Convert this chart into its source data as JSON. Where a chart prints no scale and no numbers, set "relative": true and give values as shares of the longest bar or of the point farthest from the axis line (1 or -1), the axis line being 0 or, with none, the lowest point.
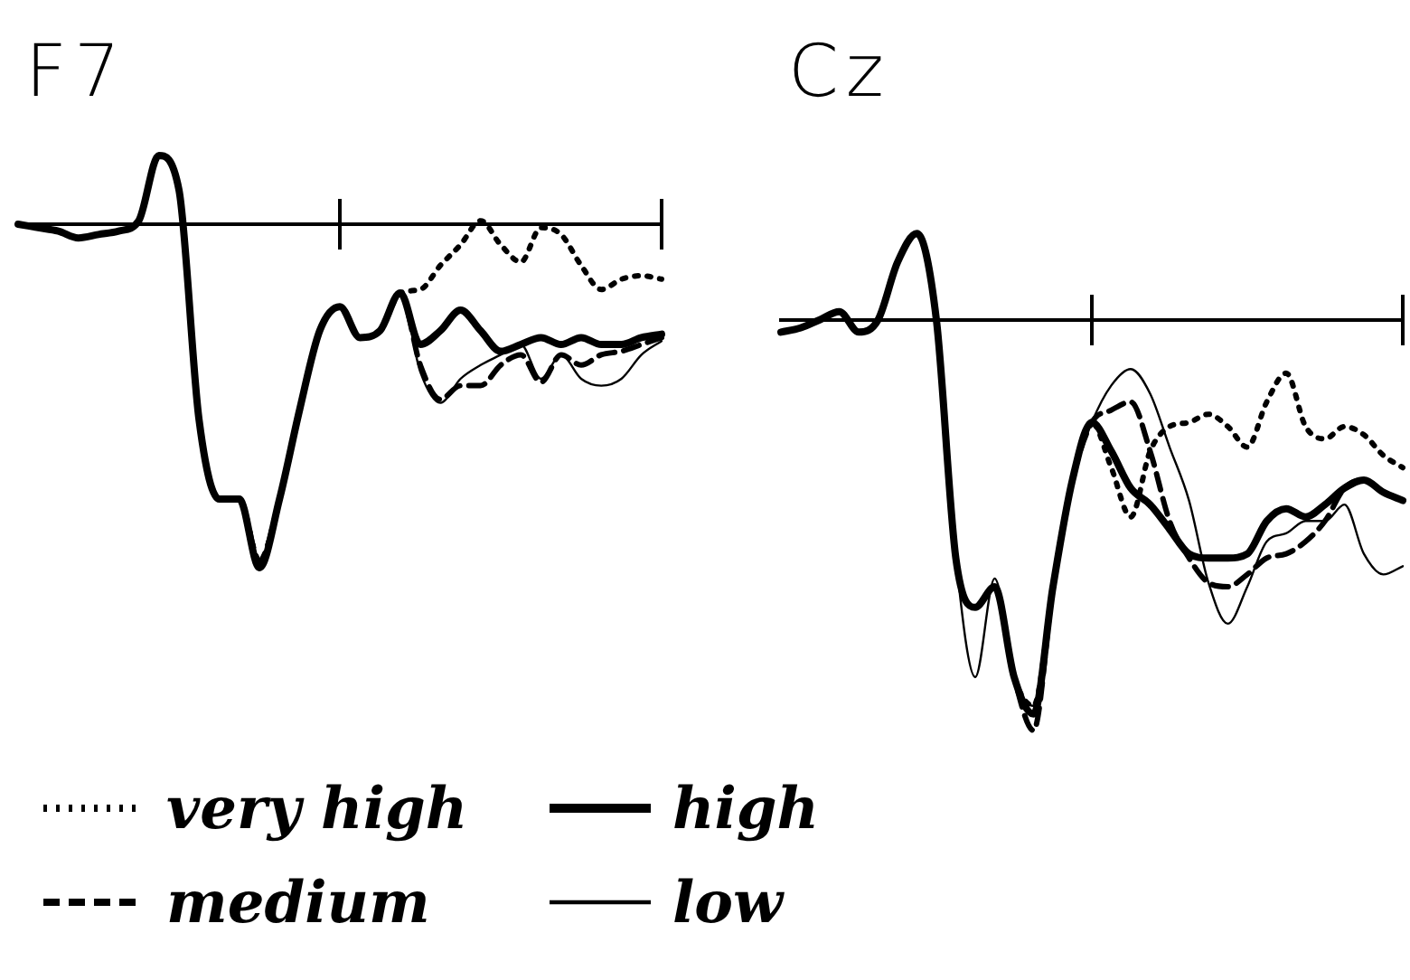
{
  "chart_data": [
    {
      "type": "line",
      "title": "F7",
      "relative": true,
      "legend": "bottom",
      "categories": [
        null,
        null,
        null,
        null,
        null,
        null,
        null,
        null,
        null,
        null,
        null,
        null,
        null,
        null,
        null,
        null,
        null,
        null,
        null,
        null,
        null,
        null,
        null,
        null,
        null,
        null,
        null,
        null,
        null,
        null,
        null,
        null,
        null
      ],
      "series": [
        {
          "name": "very high",
          "color": "#000000",
          "line_style": "dotted",
          "values": [
            0,
            -0.01,
            -0.02,
            -0.04,
            -0.03,
            -0.02,
            0.01,
            0.2,
            0.1,
            -0.57,
            -0.8,
            -0.8,
            -0.98,
            -0.8,
            -0.54,
            -0.31,
            -0.24,
            -0.33,
            -0.31,
            -0.2,
            -0.19,
            -0.12,
            -0.06,
            0.01,
            -0.06,
            -0.11,
            -0.01,
            -0.03,
            -0.12,
            -0.19,
            -0.16,
            -0.15,
            -0.16
          ]
        },
        {
          "name": "high",
          "color": "#000000",
          "line_style": "solid",
          "values": [
            0,
            -0.01,
            -0.02,
            -0.04,
            -0.03,
            -0.02,
            0.01,
            0.2,
            0.1,
            -0.57,
            -0.8,
            -0.8,
            -1,
            -0.8,
            -0.54,
            -0.31,
            -0.24,
            -0.33,
            -0.31,
            -0.2,
            -0.35,
            -0.31,
            -0.25,
            -0.31,
            -0.37,
            -0.35,
            -0.33,
            -0.35,
            -0.33,
            -0.35,
            -0.35,
            -0.33,
            -0.32
          ]
        },
        {
          "name": "medium",
          "color": "#000000",
          "line_style": "dashed",
          "values": [
            0,
            -0.01,
            -0.02,
            -0.04,
            -0.03,
            -0.02,
            0.01,
            0.2,
            0.1,
            -0.57,
            -0.8,
            -0.8,
            -0.98,
            -0.8,
            -0.54,
            -0.31,
            -0.24,
            -0.33,
            -0.31,
            -0.2,
            -0.41,
            -0.51,
            -0.47,
            -0.47,
            -0.41,
            -0.38,
            -0.46,
            -0.38,
            -0.41,
            -0.38,
            -0.37,
            -0.35,
            -0.33
          ]
        },
        {
          "name": "low",
          "color": "#000000",
          "line_style": "solid",
          "values": [
            0,
            -0.01,
            -0.02,
            -0.04,
            -0.03,
            -0.02,
            0.01,
            0.2,
            0.1,
            -0.57,
            -0.8,
            -0.8,
            -0.98,
            -0.8,
            -0.54,
            -0.31,
            -0.24,
            -0.33,
            -0.31,
            -0.2,
            -0.43,
            -0.52,
            -0.45,
            -0.41,
            -0.38,
            -0.35,
            -0.45,
            -0.38,
            -0.45,
            -0.47,
            -0.45,
            -0.38,
            -0.34
          ]
        }
      ]
    },
    {
      "type": "line",
      "title": "Cz",
      "relative": true,
      "categories": [
        null,
        null,
        null,
        null,
        null,
        null,
        null,
        null,
        null,
        null,
        null,
        null,
        null,
        null,
        null,
        null,
        null,
        null,
        null,
        null,
        null,
        null,
        null,
        null,
        null,
        null,
        null,
        null,
        null,
        null,
        null,
        null,
        null
      ],
      "series": [
        {
          "color": "#000000",
          "line_style": "dotted",
          "values": [
            -0.03,
            -0.02,
            0,
            0.02,
            -0.03,
            0,
            0.14,
            0.21,
            0,
            -0.58,
            -0.7,
            -0.65,
            -0.87,
            -0.94,
            -0.65,
            -0.39,
            -0.25,
            -0.36,
            -0.48,
            -0.32,
            -0.26,
            -0.25,
            -0.23,
            -0.26,
            -0.31,
            -0.2,
            -0.13,
            -0.26,
            -0.29,
            -0.26,
            -0.28,
            -0.33,
            -0.36
          ]
        },
        {
          "color": "#000000",
          "line_style": "solid",
          "values": [
            -0.03,
            -0.02,
            0,
            0.02,
            -0.03,
            0,
            0.14,
            0.21,
            0,
            -0.58,
            -0.7,
            -0.65,
            -0.87,
            -0.96,
            -0.65,
            -0.39,
            -0.25,
            -0.32,
            -0.41,
            -0.45,
            -0.51,
            -0.57,
            -0.58,
            -0.58,
            -0.57,
            -0.49,
            -0.46,
            -0.48,
            -0.45,
            -0.41,
            -0.39,
            -0.42,
            -0.44
          ]
        },
        {
          "color": "#000000",
          "line_style": "dashed",
          "values": [
            -0.03,
            -0.02,
            0,
            0.02,
            -0.03,
            0,
            0.14,
            0.21,
            0,
            -0.58,
            -0.7,
            -0.65,
            -0.87,
            -1,
            -0.65,
            -0.39,
            -0.25,
            -0.22,
            -0.2,
            -0.32,
            -0.49,
            -0.58,
            -0.64,
            -0.65,
            -0.62,
            -0.58,
            -0.57,
            -0.54,
            -0.49,
            -0.41,
            -0.39,
            -0.42,
            -0.44
          ]
        },
        {
          "color": "#000000",
          "line_style": "solid",
          "values": [
            -0.03,
            -0.02,
            0,
            0.02,
            -0.03,
            0,
            0.14,
            0.21,
            0,
            -0.58,
            -0.87,
            -0.63,
            -0.87,
            -0.94,
            -0.65,
            -0.39,
            -0.25,
            -0.16,
            -0.12,
            -0.18,
            -0.31,
            -0.44,
            -0.64,
            -0.74,
            -0.65,
            -0.54,
            -0.52,
            -0.49,
            -0.49,
            -0.45,
            -0.57,
            -0.62,
            -0.6
          ]
        }
      ]
    }
  ]
}
